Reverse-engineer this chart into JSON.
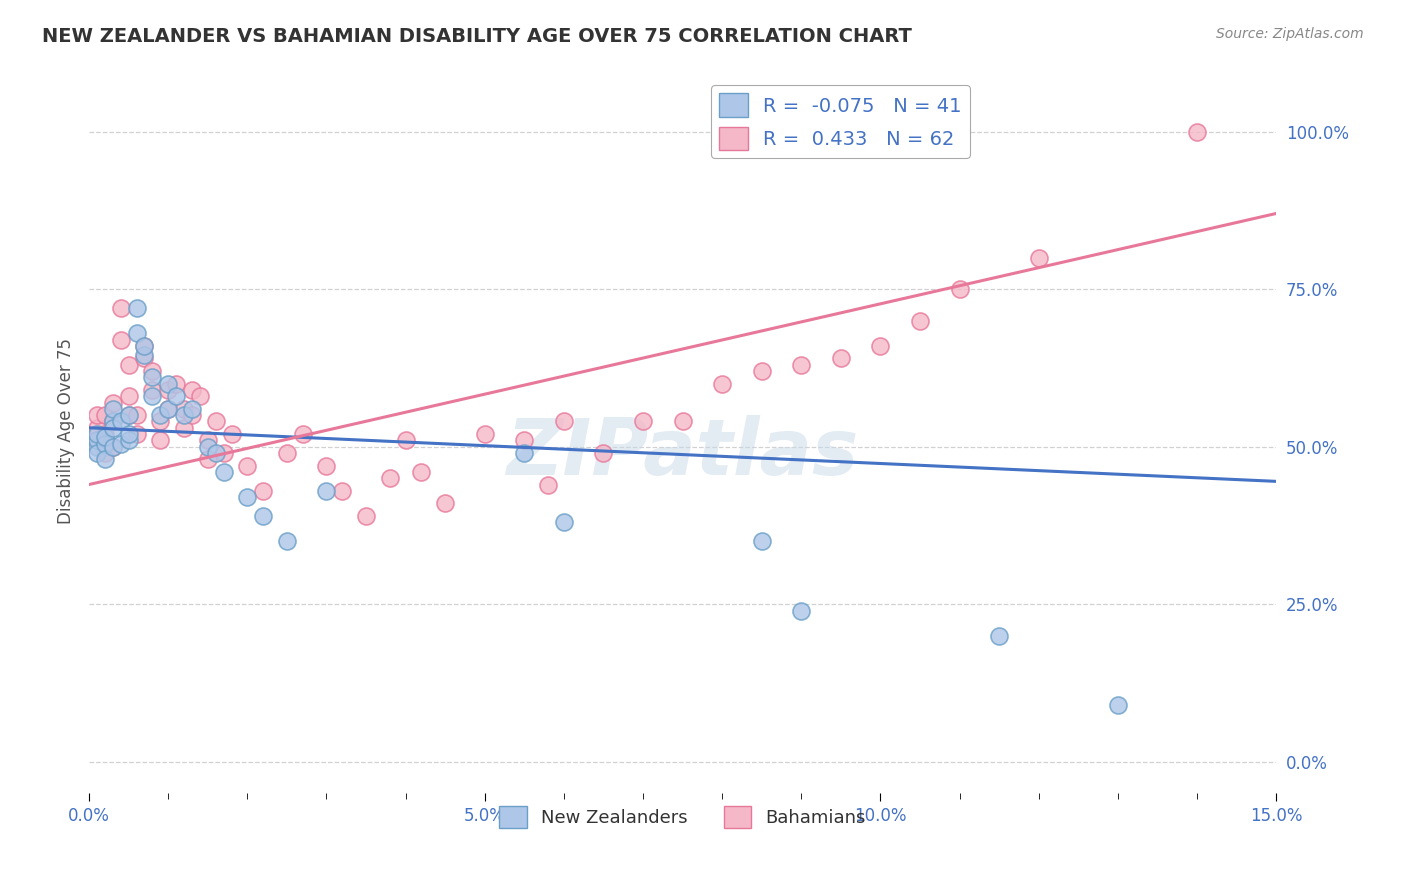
{
  "title": "NEW ZEALANDER VS BAHAMIAN DISABILITY AGE OVER 75 CORRELATION CHART",
  "source_text": "Source: ZipAtlas.com",
  "ylabel": "Disability Age Over 75",
  "right_ytick_labels": [
    "0.0%",
    "25.0%",
    "50.0%",
    "75.0%",
    "100.0%"
  ],
  "right_ytick_values": [
    0.0,
    0.25,
    0.5,
    0.75,
    1.0
  ],
  "xlim": [
    0.0,
    0.15
  ],
  "ylim": [
    -0.05,
    1.1
  ],
  "xtick_labels": [
    "0.0%",
    "",
    "",
    "",
    "",
    "5.0%",
    "",
    "",
    "",
    "",
    "10.0%",
    "",
    "",
    "",
    "",
    "15.0%"
  ],
  "xtick_values": [
    0.0,
    0.01,
    0.02,
    0.03,
    0.04,
    0.05,
    0.06,
    0.07,
    0.08,
    0.09,
    0.1,
    0.11,
    0.12,
    0.13,
    0.14,
    0.15
  ],
  "nz_color": "#aec6e8",
  "bah_color": "#f4b8c8",
  "nz_edge_color": "#6a9fc8",
  "bah_edge_color": "#e8789a",
  "nz_line_color": "#4472c4",
  "bah_line_color": "#e8789a",
  "R_nz": -0.075,
  "N_nz": 41,
  "R_bah": 0.433,
  "N_bah": 62,
  "background_color": "#ffffff",
  "grid_color": "#cccccc",
  "nz_line_y0": 0.53,
  "nz_line_y1": 0.445,
  "bah_line_y0": 0.44,
  "bah_line_y1": 0.87,
  "nz_scatter_x": [
    0.001,
    0.001,
    0.001,
    0.001,
    0.002,
    0.002,
    0.002,
    0.003,
    0.003,
    0.003,
    0.003,
    0.004,
    0.004,
    0.005,
    0.005,
    0.005,
    0.006,
    0.006,
    0.007,
    0.007,
    0.008,
    0.008,
    0.009,
    0.01,
    0.01,
    0.011,
    0.012,
    0.013,
    0.015,
    0.016,
    0.017,
    0.02,
    0.022,
    0.025,
    0.03,
    0.055,
    0.06,
    0.085,
    0.09,
    0.115,
    0.13
  ],
  "nz_scatter_y": [
    0.5,
    0.51,
    0.49,
    0.52,
    0.505,
    0.515,
    0.48,
    0.54,
    0.5,
    0.53,
    0.56,
    0.505,
    0.54,
    0.51,
    0.55,
    0.52,
    0.68,
    0.72,
    0.645,
    0.66,
    0.58,
    0.61,
    0.55,
    0.6,
    0.56,
    0.58,
    0.55,
    0.56,
    0.5,
    0.49,
    0.46,
    0.42,
    0.39,
    0.35,
    0.43,
    0.49,
    0.38,
    0.35,
    0.24,
    0.2,
    0.09
  ],
  "bah_scatter_x": [
    0.001,
    0.001,
    0.001,
    0.002,
    0.002,
    0.002,
    0.003,
    0.003,
    0.003,
    0.004,
    0.004,
    0.005,
    0.005,
    0.005,
    0.006,
    0.006,
    0.007,
    0.007,
    0.008,
    0.008,
    0.009,
    0.009,
    0.01,
    0.01,
    0.011,
    0.012,
    0.012,
    0.013,
    0.013,
    0.014,
    0.015,
    0.015,
    0.016,
    0.017,
    0.018,
    0.02,
    0.022,
    0.025,
    0.027,
    0.03,
    0.032,
    0.035,
    0.038,
    0.04,
    0.042,
    0.045,
    0.05,
    0.055,
    0.058,
    0.06,
    0.065,
    0.07,
    0.075,
    0.08,
    0.085,
    0.09,
    0.095,
    0.1,
    0.105,
    0.11,
    0.12,
    0.14
  ],
  "bah_scatter_y": [
    0.53,
    0.55,
    0.51,
    0.55,
    0.52,
    0.49,
    0.57,
    0.54,
    0.5,
    0.67,
    0.72,
    0.63,
    0.58,
    0.55,
    0.55,
    0.52,
    0.66,
    0.64,
    0.59,
    0.62,
    0.54,
    0.51,
    0.59,
    0.56,
    0.6,
    0.56,
    0.53,
    0.59,
    0.55,
    0.58,
    0.48,
    0.51,
    0.54,
    0.49,
    0.52,
    0.47,
    0.43,
    0.49,
    0.52,
    0.47,
    0.43,
    0.39,
    0.45,
    0.51,
    0.46,
    0.41,
    0.52,
    0.51,
    0.44,
    0.54,
    0.49,
    0.54,
    0.54,
    0.6,
    0.62,
    0.63,
    0.64,
    0.66,
    0.7,
    0.75,
    0.8,
    1.0
  ]
}
